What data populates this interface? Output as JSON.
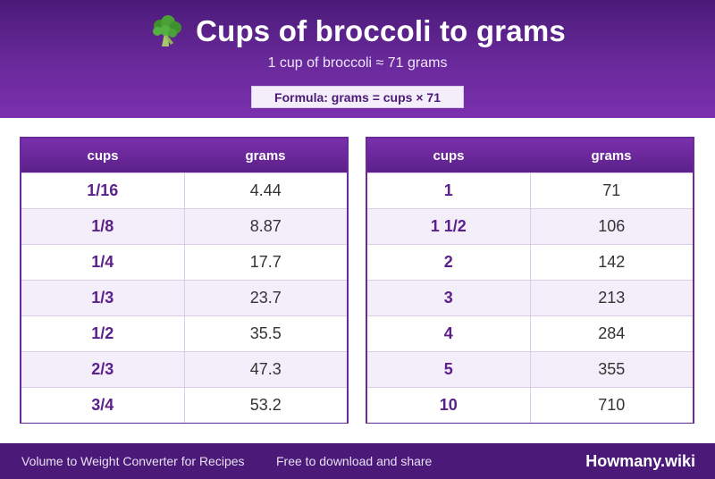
{
  "header": {
    "icon": "broccoli-icon",
    "title": "Cups of broccoli to grams",
    "subtitle": "1 cup of broccoli ≈ 71 grams",
    "formula": "Formula: grams = cups × 71"
  },
  "tables": [
    {
      "headers": {
        "cups": "cups",
        "grams": "grams"
      },
      "rows": [
        {
          "cups": "1/16",
          "grams": "4.44"
        },
        {
          "cups": "1/8",
          "grams": "8.87"
        },
        {
          "cups": "1/4",
          "grams": "17.7"
        },
        {
          "cups": "1/3",
          "grams": "23.7"
        },
        {
          "cups": "1/2",
          "grams": "35.5"
        },
        {
          "cups": "2/3",
          "grams": "47.3"
        },
        {
          "cups": "3/4",
          "grams": "53.2"
        }
      ]
    },
    {
      "headers": {
        "cups": "cups",
        "grams": "grams"
      },
      "rows": [
        {
          "cups": "1",
          "grams": "71"
        },
        {
          "cups": "1 1/2",
          "grams": "106"
        },
        {
          "cups": "2",
          "grams": "142"
        },
        {
          "cups": "3",
          "grams": "213"
        },
        {
          "cups": "4",
          "grams": "284"
        },
        {
          "cups": "5",
          "grams": "355"
        },
        {
          "cups": "10",
          "grams": "710"
        }
      ]
    }
  ],
  "footer": {
    "left": "Volume to Weight Converter for Recipes",
    "middle": "Free to download and share",
    "brand": "Howmany.wiki"
  },
  "colors": {
    "primary": "#5b2089",
    "header_dark": "#4b1a78",
    "row_alt": "#f4eefb"
  }
}
